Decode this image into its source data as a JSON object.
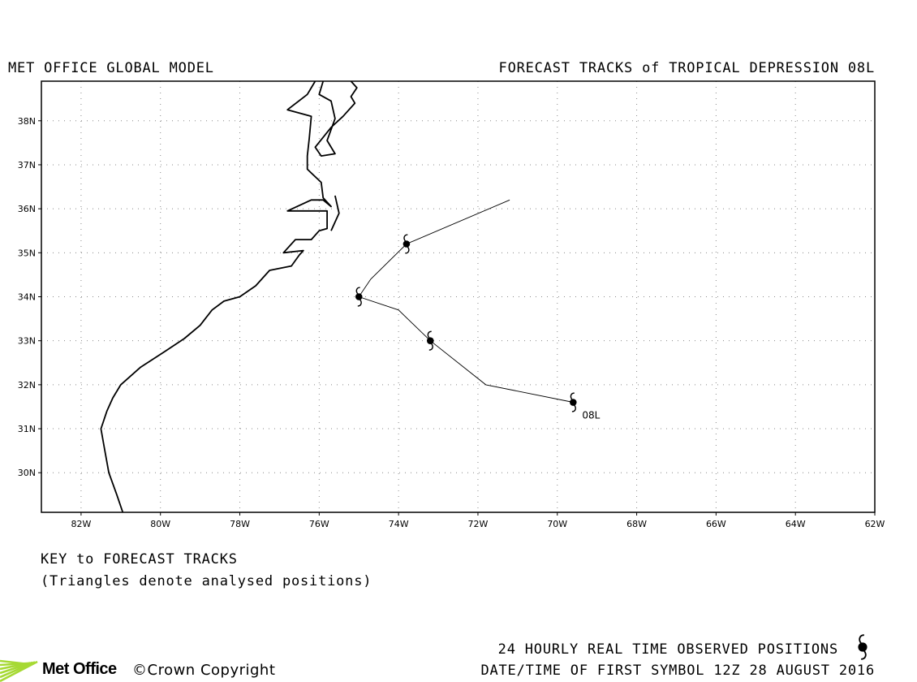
{
  "header": {
    "left_title": "MET OFFICE GLOBAL MODEL",
    "right_title": "FORECAST TRACKS of TROPICAL DEPRESSION 08L"
  },
  "map": {
    "lon_range": [
      -83,
      -62
    ],
    "lat_range": [
      29.1,
      38.9
    ],
    "lat_labels": [
      {
        "value": 30,
        "label": "30N"
      },
      {
        "value": 31,
        "label": "31N"
      },
      {
        "value": 32,
        "label": "32N"
      },
      {
        "value": 33,
        "label": "33N"
      },
      {
        "value": 34,
        "label": "34N"
      },
      {
        "value": 35,
        "label": "35N"
      },
      {
        "value": 36,
        "label": "36N"
      },
      {
        "value": 37,
        "label": "37N"
      },
      {
        "value": 38,
        "label": "38N"
      }
    ],
    "lon_labels": [
      {
        "value": -82,
        "label": "82W"
      },
      {
        "value": -80,
        "label": "80W"
      },
      {
        "value": -78,
        "label": "78W"
      },
      {
        "value": -76,
        "label": "76W"
      },
      {
        "value": -74,
        "label": "74W"
      },
      {
        "value": -72,
        "label": "72W"
      },
      {
        "value": -70,
        "label": "70W"
      },
      {
        "value": -68,
        "label": "68W"
      },
      {
        "value": -66,
        "label": "66W"
      },
      {
        "value": -64,
        "label": "64W"
      },
      {
        "value": -62,
        "label": "62W"
      }
    ],
    "storm_label": "08L",
    "track_color": "#000000",
    "forecast_track": [
      {
        "lon": -69.6,
        "lat": 31.6
      },
      {
        "lon": -71.8,
        "lat": 32.0
      },
      {
        "lon": -73.2,
        "lat": 33.0
      },
      {
        "lon": -74.0,
        "lat": 33.7
      },
      {
        "lon": -75.0,
        "lat": 34.0
      },
      {
        "lon": -74.7,
        "lat": 34.4
      },
      {
        "lon": -73.8,
        "lat": 35.2
      },
      {
        "lon": -71.2,
        "lat": 36.2
      }
    ],
    "symbol_positions": [
      {
        "lon": -69.6,
        "lat": 31.6
      },
      {
        "lon": -73.2,
        "lat": 33.0
      },
      {
        "lon": -75.0,
        "lat": 34.0
      },
      {
        "lon": -73.8,
        "lat": 35.2
      }
    ],
    "coastline": [
      [
        -80.95,
        29.1
      ],
      [
        -81.1,
        29.5
      ],
      [
        -81.3,
        30.0
      ],
      [
        -81.4,
        30.5
      ],
      [
        -81.5,
        31.0
      ],
      [
        -81.35,
        31.4
      ],
      [
        -81.2,
        31.7
      ],
      [
        -81.0,
        32.0
      ],
      [
        -80.5,
        32.4
      ],
      [
        -79.9,
        32.75
      ],
      [
        -79.4,
        33.05
      ],
      [
        -79.0,
        33.35
      ],
      [
        -78.7,
        33.7
      ],
      [
        -78.4,
        33.9
      ],
      [
        -78.0,
        34.0
      ],
      [
        -77.6,
        34.25
      ],
      [
        -77.25,
        34.6
      ],
      [
        -76.7,
        34.7
      ],
      [
        -76.5,
        34.95
      ],
      [
        -76.4,
        35.05
      ],
      [
        -76.9,
        35.0
      ],
      [
        -76.6,
        35.3
      ],
      [
        -76.2,
        35.3
      ],
      [
        -76.0,
        35.5
      ],
      [
        -75.8,
        35.55
      ],
      [
        -75.8,
        35.95
      ],
      [
        -76.8,
        35.95
      ],
      [
        -76.2,
        36.2
      ],
      [
        -75.9,
        36.2
      ],
      [
        -75.7,
        36.05
      ],
      [
        -75.9,
        36.25
      ],
      [
        -75.95,
        36.6
      ],
      [
        -76.3,
        36.9
      ],
      [
        -76.3,
        37.2
      ],
      [
        -76.25,
        37.6
      ],
      [
        -76.2,
        38.1
      ],
      [
        -76.8,
        38.25
      ],
      [
        -76.3,
        38.6
      ],
      [
        -76.1,
        38.9
      ]
    ],
    "coastline_shore": [
      [
        -75.7,
        35.5
      ],
      [
        -75.5,
        35.9
      ],
      [
        -75.6,
        36.3
      ]
    ],
    "coastline_bay_east": [
      [
        -75.9,
        38.9
      ],
      [
        -76.0,
        38.6
      ],
      [
        -75.7,
        38.45
      ],
      [
        -75.6,
        38.05
      ],
      [
        -75.8,
        37.55
      ],
      [
        -75.6,
        37.25
      ],
      [
        -75.95,
        37.2
      ],
      [
        -76.1,
        37.4
      ],
      [
        -75.7,
        37.85
      ],
      [
        -75.4,
        38.1
      ],
      [
        -75.1,
        38.4
      ],
      [
        -75.2,
        38.55
      ],
      [
        -75.05,
        38.75
      ],
      [
        -75.2,
        38.9
      ]
    ]
  },
  "key": {
    "title": "KEY to FORECAST TRACKS",
    "note": "(Triangles denote analysed positions)"
  },
  "footer": {
    "observed_positions": "24 HOURLY REAL TIME OBSERVED POSITIONS",
    "first_symbol": "DATE/TIME OF FIRST SYMBOL 12Z 28 AUGUST 2016",
    "brand": "Met Office",
    "copyright": "©Crown Copyright",
    "brand_color": "#a6d934"
  },
  "icons": {
    "storm_symbol": "tropical-storm-icon",
    "logo": "met-office-logo-icon"
  }
}
